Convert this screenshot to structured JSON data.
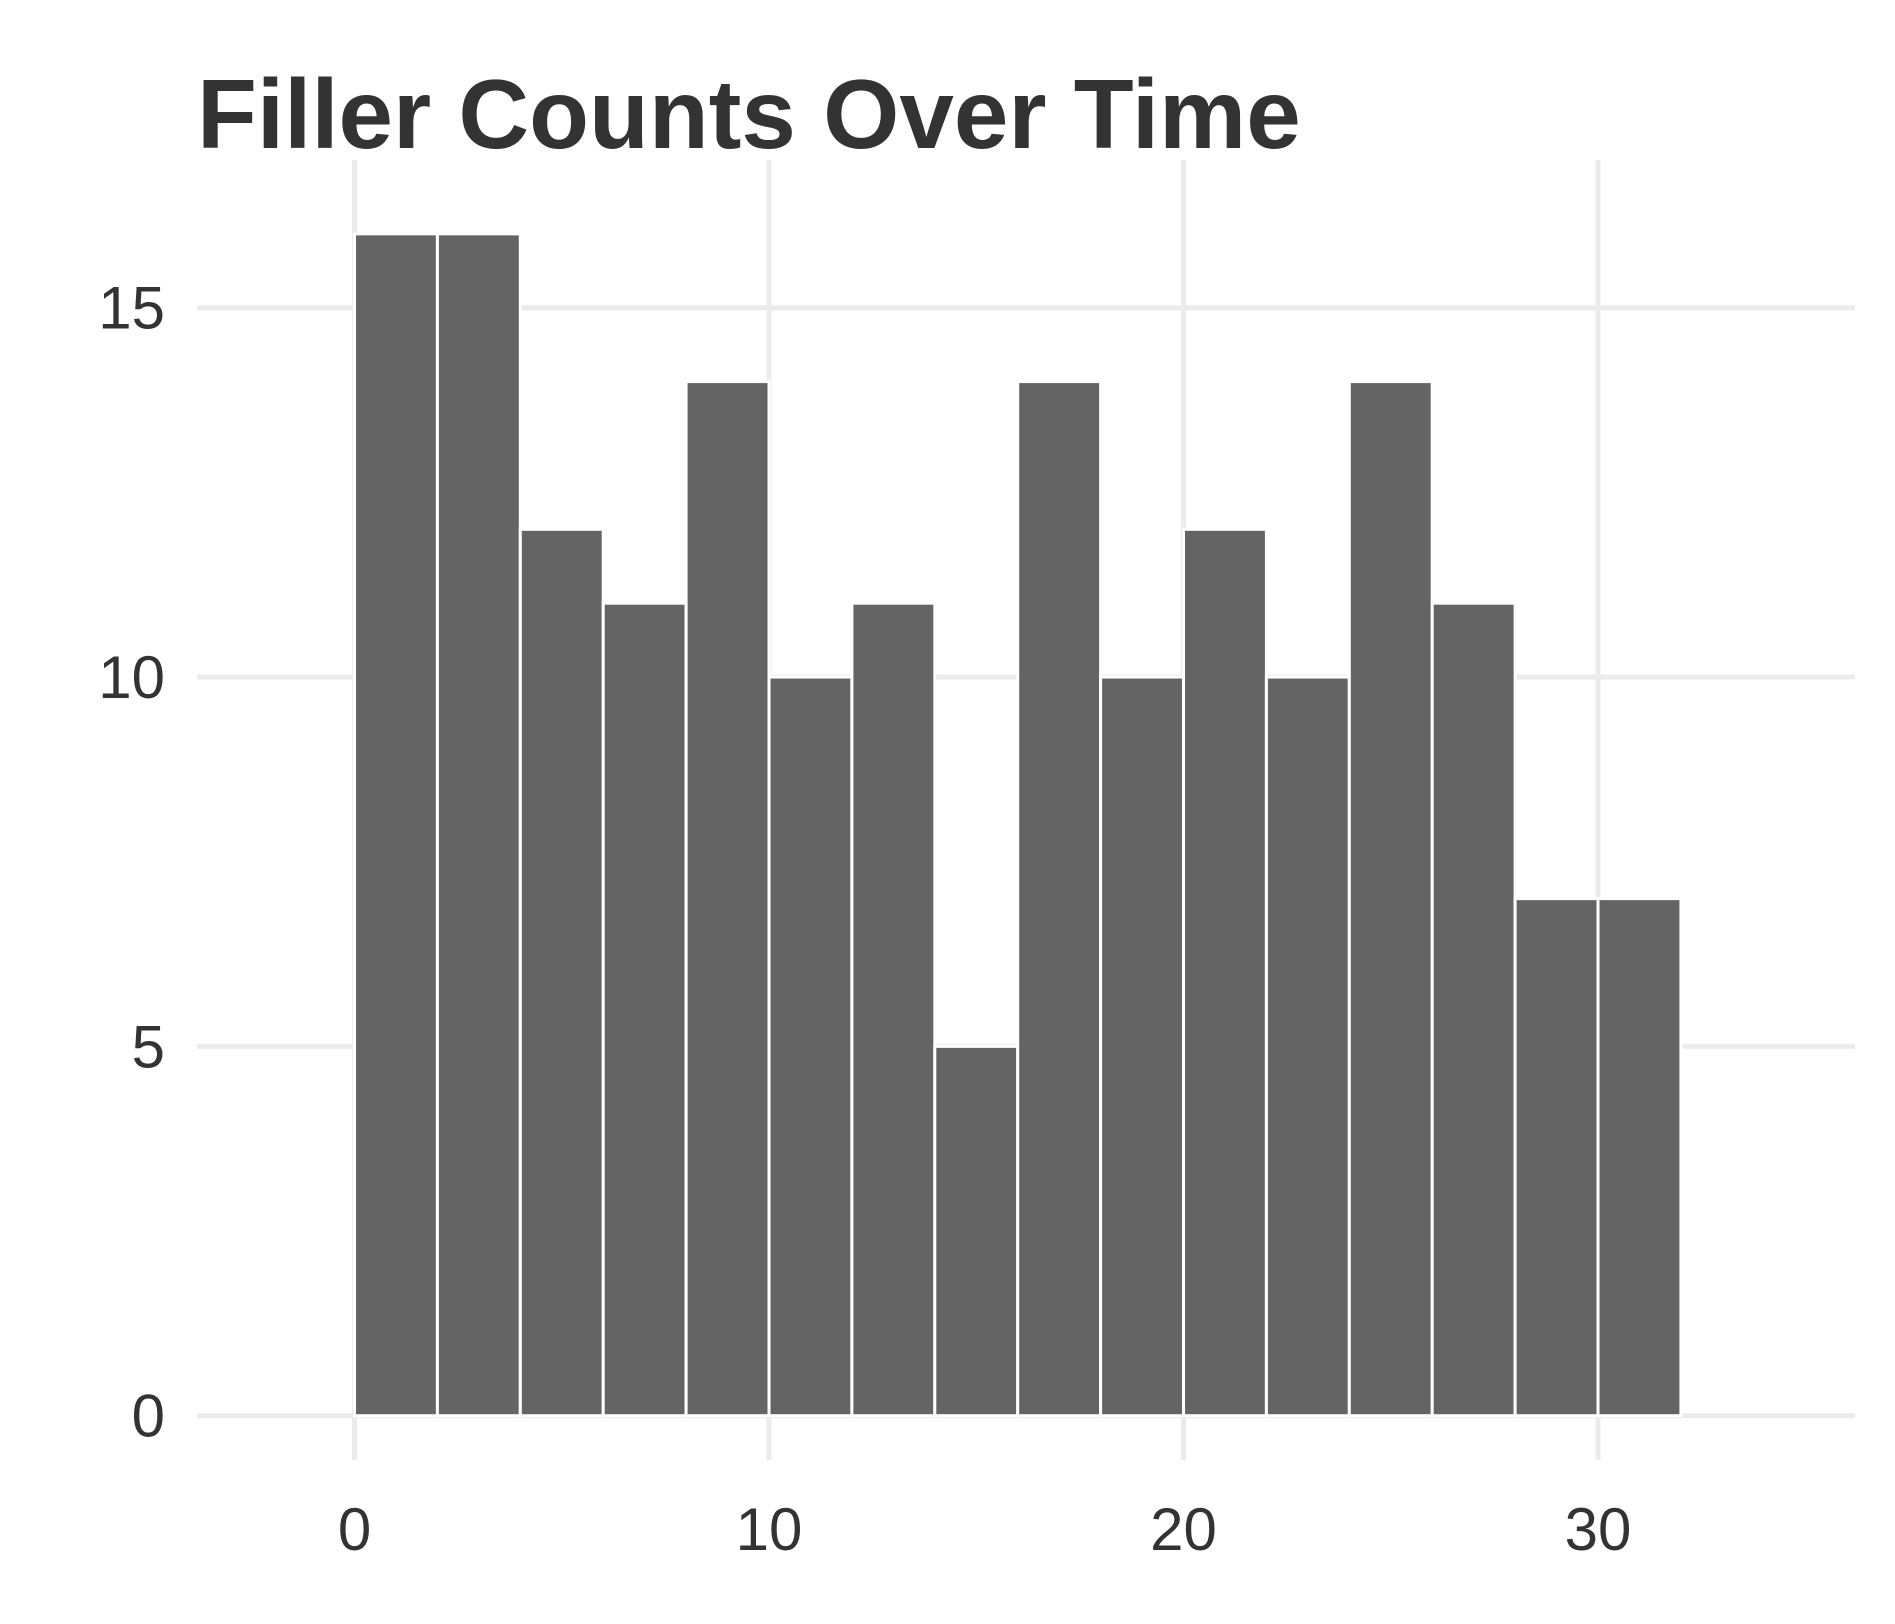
{
  "chart_data": {
    "type": "bar",
    "title": "Filler Counts Over Time",
    "xlabel": "",
    "ylabel": "",
    "bin_width": 2,
    "bins": [
      {
        "x_start": 0,
        "x_end": 2,
        "count": 16
      },
      {
        "x_start": 2,
        "x_end": 4,
        "count": 16
      },
      {
        "x_start": 4,
        "x_end": 6,
        "count": 12
      },
      {
        "x_start": 6,
        "x_end": 8,
        "count": 11
      },
      {
        "x_start": 8,
        "x_end": 10,
        "count": 14
      },
      {
        "x_start": 10,
        "x_end": 12,
        "count": 10
      },
      {
        "x_start": 12,
        "x_end": 14,
        "count": 11
      },
      {
        "x_start": 14,
        "x_end": 16,
        "count": 5
      },
      {
        "x_start": 16,
        "x_end": 18,
        "count": 14
      },
      {
        "x_start": 18,
        "x_end": 20,
        "count": 10
      },
      {
        "x_start": 20,
        "x_end": 22,
        "count": 12
      },
      {
        "x_start": 22,
        "x_end": 24,
        "count": 10
      },
      {
        "x_start": 24,
        "x_end": 26,
        "count": 14
      },
      {
        "x_start": 26,
        "x_end": 28,
        "count": 11
      },
      {
        "x_start": 28,
        "x_end": 30,
        "count": 7
      },
      {
        "x_start": 30,
        "x_end": 32,
        "count": 7
      }
    ],
    "xlim": [
      -3.8,
      36.2
    ],
    "ylim": [
      -0.6,
      17
    ],
    "x_ticks": [
      0,
      10,
      20,
      30
    ],
    "x_tick_labels": [
      "0",
      "10",
      "20",
      "30"
    ],
    "y_ticks": [
      0,
      5,
      10,
      15
    ],
    "y_tick_labels": [
      "0",
      "5",
      "10",
      "15"
    ],
    "grid": true,
    "legend": "none",
    "colors": {
      "bar_fill": "#646464",
      "bar_outline": "#ffffff",
      "grid": "#ebebeb",
      "text": "#333333",
      "background": "#ffffff"
    }
  }
}
